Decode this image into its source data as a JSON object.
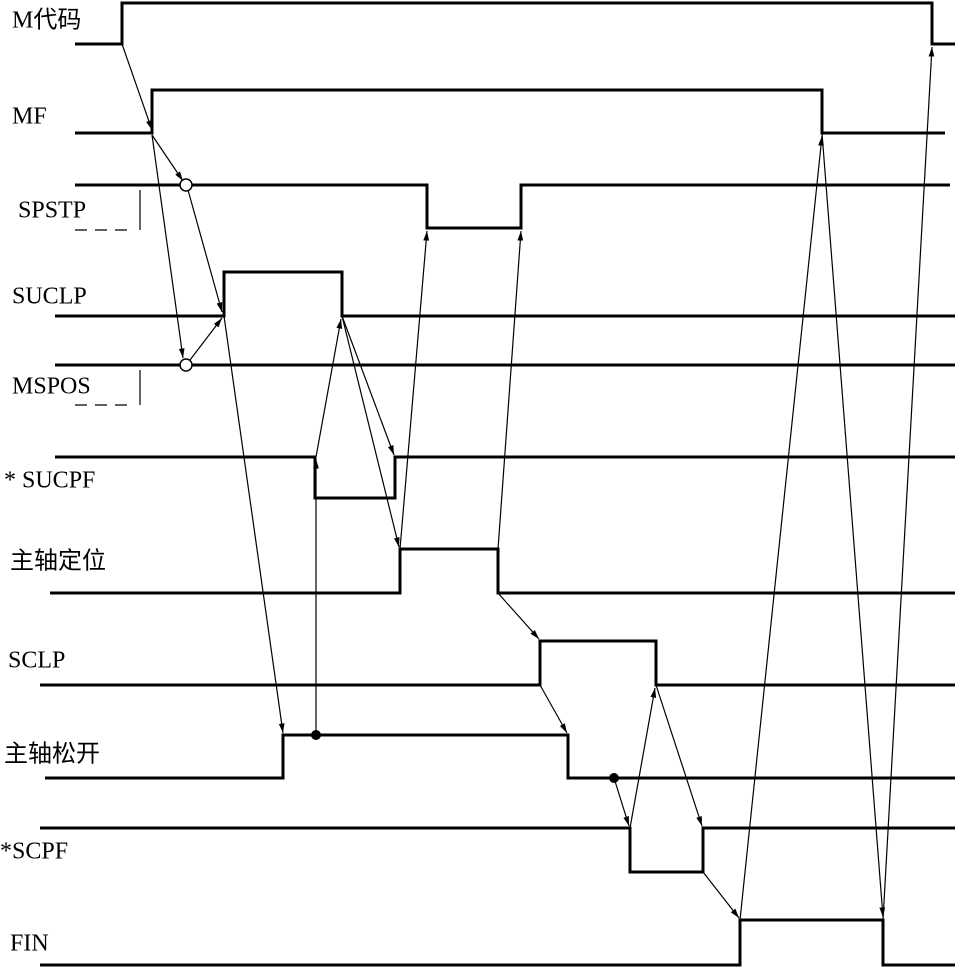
{
  "signals": [
    {
      "label": "M代码"
    },
    {
      "label": "MF"
    },
    {
      "label": "SPSTP"
    },
    {
      "label": "SUCLP"
    },
    {
      "label": "MSPOS"
    },
    {
      "label": "* SUCPF"
    },
    {
      "label": "主轴定位"
    },
    {
      "label": "SCLP"
    },
    {
      "label": "主轴松开"
    },
    {
      "label": "*SCPF"
    },
    {
      "label": "FIN"
    }
  ]
}
